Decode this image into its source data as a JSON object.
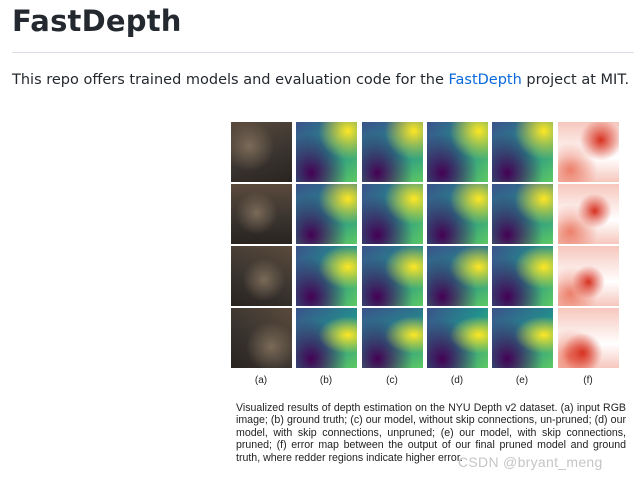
{
  "header": {
    "title": "FastDepth"
  },
  "intro": {
    "before": "This repo offers trained models and evaluation code for the ",
    "link": "FastDepth",
    "after": " project at MIT."
  },
  "figure": {
    "column_labels": [
      "(a)",
      "(b)",
      "(c)",
      "(d)",
      "(e)",
      "(f)"
    ],
    "caption": "Visualized results of depth estimation on the NYU Depth v2 dataset. (a) input RGB image; (b) ground truth; (c) our model, without skip connections, un-pruned; (d) our model, with skip connections, unpruned; (e) our model, with skip connections, pruned; (f) error map between the output of our final pruned model and ground truth, where redder regions indicate higher error.",
    "watermark": "CSDN @bryant_meng",
    "panel_kinds": [
      "photo",
      "depth",
      "depth",
      "depth",
      "depth",
      "error"
    ],
    "palette": {
      "photo": [
        "#3b3530",
        "#5a4a3c",
        "#7a6a58",
        "#2a2420"
      ],
      "depth": [
        "#440154",
        "#3b528b",
        "#21918c",
        "#5ec962",
        "#fde725"
      ],
      "error": [
        "#ffffff",
        "#f6c7bd",
        "#ec7f6a",
        "#d7301f"
      ]
    }
  }
}
